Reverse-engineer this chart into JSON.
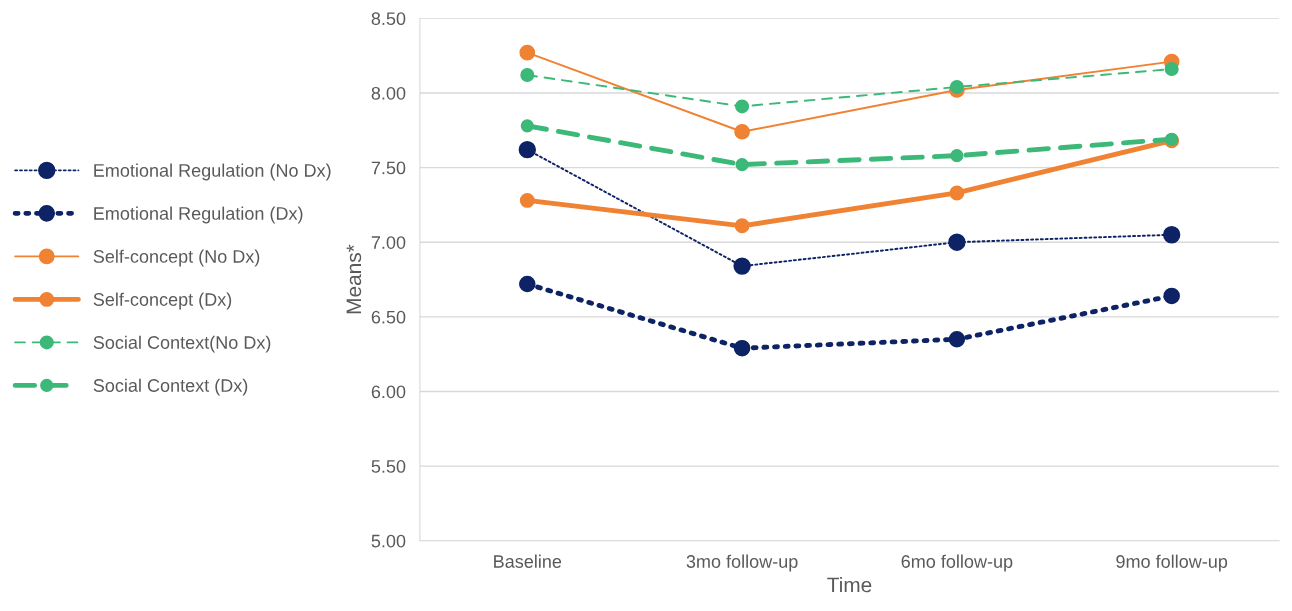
{
  "chart_data": {
    "type": "line",
    "xlabel": "Time",
    "ylabel": "Means*",
    "categories": [
      "Baseline",
      "3mo follow-up",
      "6mo follow-up",
      "9mo follow-up"
    ],
    "ylim": [
      5,
      8.5
    ],
    "yticks": [
      {
        "value": 5,
        "label": "5.00"
      },
      {
        "value": 5.5,
        "label": "5.50"
      },
      {
        "value": 6,
        "label": "6.00"
      },
      {
        "value": 6.5,
        "label": "6.50"
      },
      {
        "value": 7,
        "label": "7.00"
      },
      {
        "value": 7.5,
        "label": "7.50"
      },
      {
        "value": 8,
        "label": "8.00"
      },
      {
        "value": 8.5,
        "label": "8.50"
      }
    ],
    "grid": "y",
    "legend": "left",
    "marker": "circle",
    "series": [
      {
        "name": "Emotional Regulation (No Dx)",
        "color": "#0d2366",
        "line_style": "dotted",
        "values": [
          7.62,
          6.84,
          7.0,
          7.05
        ]
      },
      {
        "name": "Emotional Regulation (Dx)",
        "color": "#0d2366",
        "line_style": "dotted",
        "values": [
          6.72,
          6.29,
          6.35,
          6.64
        ]
      },
      {
        "name": "Self-concept (No Dx)",
        "color": "#f08233",
        "line_style": "solid",
        "values": [
          8.27,
          7.74,
          8.02,
          8.21
        ]
      },
      {
        "name": "Self-concept (Dx)",
        "color": "#f08233",
        "line_style": "solid",
        "values": [
          7.28,
          7.11,
          7.33,
          7.68
        ]
      },
      {
        "name": "Social Context(No Dx)",
        "color": "#3cb878",
        "line_style": "dashed",
        "values": [
          8.12,
          7.91,
          8.04,
          8.16
        ]
      },
      {
        "name": "Social Context (Dx)",
        "color": "#3cb878",
        "line_style": "dashed",
        "values": [
          7.78,
          7.52,
          7.58,
          7.69
        ]
      }
    ]
  }
}
